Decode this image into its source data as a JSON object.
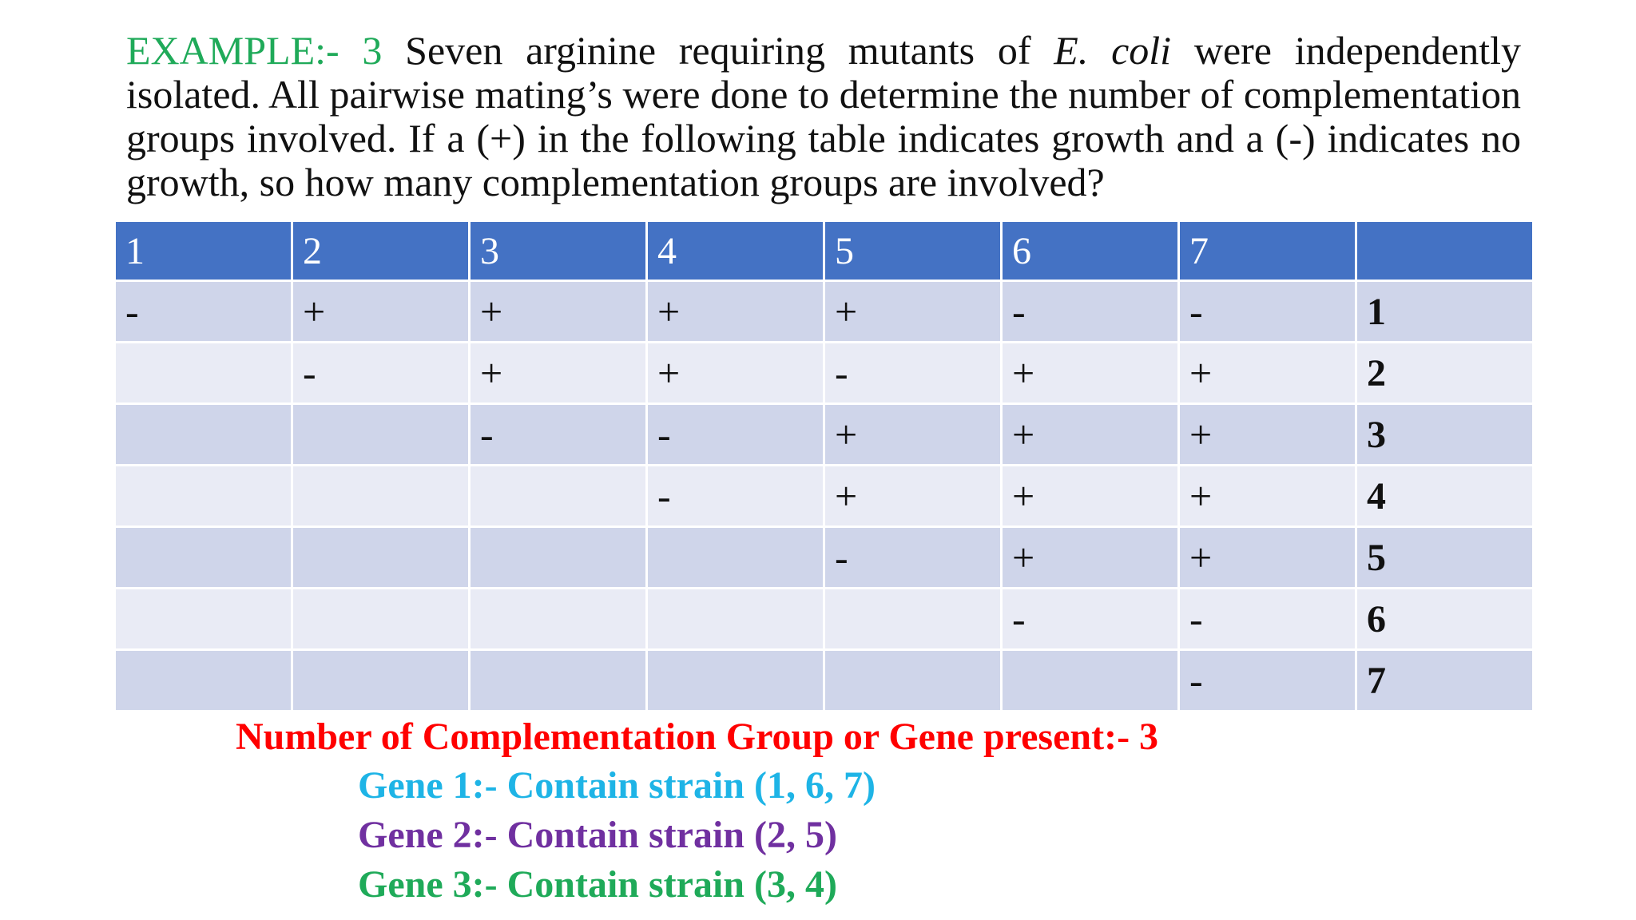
{
  "problem": {
    "label": "EXAMPLE:- 3",
    "text_before_species": " Seven arginine requiring mutants of ",
    "species": "E. coli",
    "text_after_species": " were independently isolated. All pairwise mating’s were done to determine the number of complementation groups involved. If a (+) in the following table indicates growth and a (-) indicates no growth, so how many complementation groups are involved?"
  },
  "table": {
    "header": [
      "1",
      "2",
      "3",
      "4",
      "5",
      "6",
      "7",
      ""
    ],
    "rows": [
      [
        "-",
        "+",
        "+",
        "+",
        "+",
        "-",
        "-",
        "1"
      ],
      [
        "",
        "-",
        "+",
        "+",
        "-",
        "+",
        "+",
        "2"
      ],
      [
        "",
        "",
        "-",
        "-",
        "+",
        "+",
        "+",
        "3"
      ],
      [
        "",
        "",
        "",
        "-",
        "+",
        "+",
        "+",
        "4"
      ],
      [
        "",
        "",
        "",
        "",
        "-",
        "+",
        "+",
        "5"
      ],
      [
        "",
        "",
        "",
        "",
        "",
        "-",
        "-",
        "6"
      ],
      [
        "",
        "",
        "",
        "",
        "",
        "",
        "-",
        "7"
      ]
    ]
  },
  "answer": {
    "summary": "Number of Complementation Group or Gene present:- 3",
    "gene1": "Gene 1:- Contain strain (1, 6, 7)",
    "gene2": "Gene 2:- Contain strain (2, 5)",
    "gene3": "Gene 3:- Contain strain (3, 4)"
  },
  "colors": {
    "label_green": "#1faa59",
    "header_blue": "#4472c4",
    "row_odd": "#cfd5ea",
    "row_even": "#e9ebf5",
    "summary_red": "#ff0000",
    "gene1_cyan": "#1eb4e6",
    "gene2_purple": "#7030a0",
    "gene3_green": "#1faa59"
  }
}
